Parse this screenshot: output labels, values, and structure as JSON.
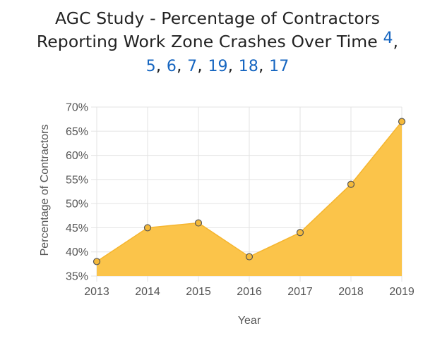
{
  "title": {
    "line1": "AGC Study - Percentage of Contractors",
    "line2": "Reporting Work Zone Crashes Over Time",
    "refs": [
      "4",
      "5",
      "6",
      "7",
      "19",
      "18",
      "17"
    ],
    "separator": ","
  },
  "chart_data": {
    "type": "area",
    "title": "AGC Study - Percentage of Contractors Reporting Work Zone Crashes Over Time",
    "xlabel": "Year",
    "ylabel": "Percentage of Contractors",
    "categories": [
      "2013",
      "2014",
      "2015",
      "2016",
      "2017",
      "2018",
      "2019"
    ],
    "values": [
      38,
      45,
      46,
      39,
      44,
      54,
      67
    ],
    "ylim": [
      35,
      70
    ],
    "ytick_step": 5,
    "y_suffix": "%",
    "grid": true,
    "legend": "none",
    "colors": {
      "fill": "#fbc44a",
      "line": "#f5b52e",
      "point_fill": "#f4b93a",
      "point_stroke": "#555555",
      "grid": "#e3e3e3"
    }
  }
}
